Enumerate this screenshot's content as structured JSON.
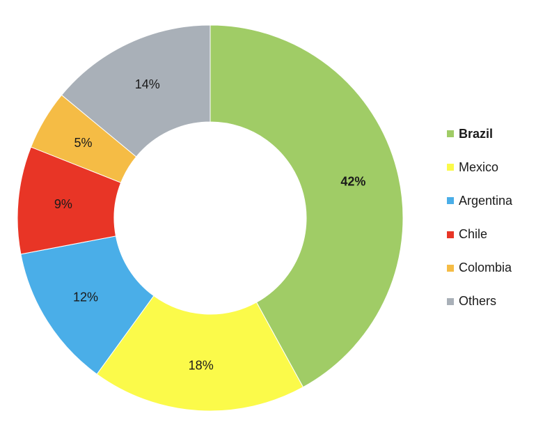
{
  "chart_data": {
    "type": "pie",
    "style": "donut",
    "categories": [
      "Brazil",
      "Mexico",
      "Argentina",
      "Chile",
      "Colombia",
      "Others"
    ],
    "values": [
      42,
      18,
      12,
      9,
      5,
      14
    ],
    "labels": [
      "42%",
      "18%",
      "12%",
      "9%",
      "5%",
      "14%"
    ],
    "colors": [
      "#a0cc66",
      "#fbfa4a",
      "#4aaee8",
      "#e83526",
      "#f5bc45",
      "#a9b0b8"
    ],
    "highlighted": "Brazil",
    "legend_position": "right"
  }
}
